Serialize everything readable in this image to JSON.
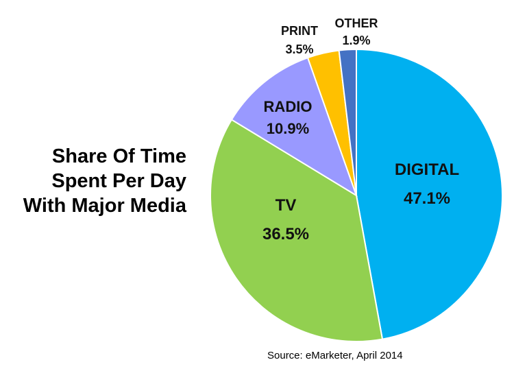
{
  "chart_data": {
    "type": "pie",
    "title_lines": [
      "Share Of Time",
      "Spent Per Day",
      "With Major Media"
    ],
    "source": "Source: eMarketer, April 2014",
    "slices": [
      {
        "name": "DIGITAL",
        "value": 47.1,
        "value_label": "47.1%",
        "color": "#00B0F0"
      },
      {
        "name": "TV",
        "value": 36.5,
        "value_label": "36.5%",
        "color": "#92D050"
      },
      {
        "name": "RADIO",
        "value": 10.9,
        "value_label": "10.9%",
        "color": "#9999FF"
      },
      {
        "name": "PRINT",
        "value": 3.5,
        "value_label": "3.5%",
        "color": "#FFC000"
      },
      {
        "name": "OTHER",
        "value": 1.9,
        "value_label": "1.9%",
        "color": "#4472C4"
      }
    ],
    "legend": "none",
    "labels_position": "on-slice"
  }
}
